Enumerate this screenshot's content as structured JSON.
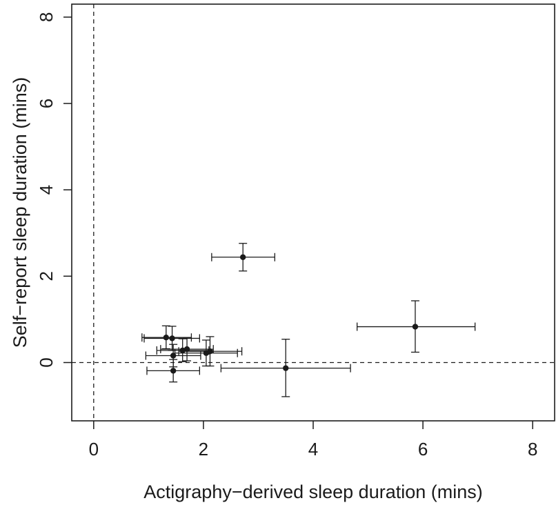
{
  "chart_data": {
    "type": "scatter",
    "title": "",
    "xlabel": "Actigraphy−derived sleep duration (mins)",
    "ylabel": "Self−report sleep duration (mins)",
    "xlim": [
      -0.4,
      8.4
    ],
    "ylim": [
      -1.35,
      8.3
    ],
    "x_ticks": [
      0,
      2,
      4,
      6,
      8
    ],
    "y_ticks": [
      0,
      2,
      4,
      6,
      8
    ],
    "x_tick_labels": [
      "0",
      "2",
      "4",
      "6",
      "8"
    ],
    "y_tick_labels": [
      "0",
      "2",
      "4",
      "6",
      "8"
    ],
    "grid": false,
    "reference_lines": {
      "x": 0,
      "y": 0,
      "style": "dashed"
    },
    "colors": {
      "points": "#1a1a1a",
      "axes": "#1a1a1a",
      "background": "#ffffff"
    },
    "points": [
      {
        "x": 2.72,
        "y": 2.44,
        "x_low": 2.15,
        "x_high": 3.3,
        "y_low": 2.12,
        "y_high": 2.76
      },
      {
        "x": 5.86,
        "y": 0.83,
        "x_low": 4.8,
        "x_high": 6.95,
        "y_low": 0.24,
        "y_high": 1.43
      },
      {
        "x": 3.5,
        "y": -0.13,
        "x_low": 2.32,
        "x_high": 4.68,
        "y_low": -0.79,
        "y_high": 0.54
      },
      {
        "x": 1.32,
        "y": 0.58,
        "x_low": 0.88,
        "x_high": 1.78,
        "y_low": 0.32,
        "y_high": 0.85
      },
      {
        "x": 1.43,
        "y": 0.56,
        "x_low": 0.92,
        "x_high": 1.93,
        "y_low": 0.28,
        "y_high": 0.84
      },
      {
        "x": 1.62,
        "y": 0.28,
        "x_low": 1.15,
        "x_high": 2.1,
        "y_low": 0.02,
        "y_high": 0.55
      },
      {
        "x": 1.7,
        "y": 0.31,
        "x_low": 1.22,
        "x_high": 2.18,
        "y_low": 0.04,
        "y_high": 0.58
      },
      {
        "x": 2.05,
        "y": 0.22,
        "x_low": 1.48,
        "x_high": 2.62,
        "y_low": -0.08,
        "y_high": 0.52
      },
      {
        "x": 2.12,
        "y": 0.26,
        "x_low": 1.55,
        "x_high": 2.7,
        "y_low": -0.08,
        "y_high": 0.6
      },
      {
        "x": 1.45,
        "y": 0.16,
        "x_low": 0.95,
        "x_high": 1.95,
        "y_low": -0.1,
        "y_high": 0.42
      },
      {
        "x": 1.45,
        "y": -0.19,
        "x_low": 0.97,
        "x_high": 1.93,
        "y_low": -0.45,
        "y_high": 0.07
      }
    ]
  }
}
